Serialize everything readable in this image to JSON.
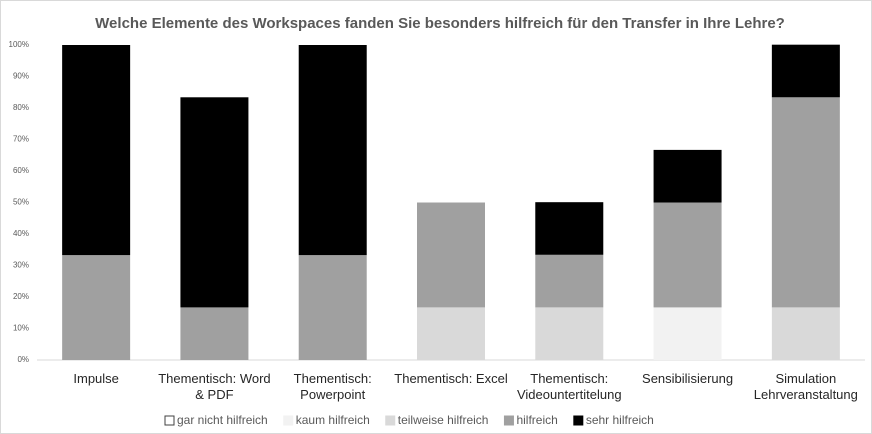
{
  "chart_data": {
    "type": "stacked_bar",
    "title": "Welche Elemente des Workspaces fanden Sie besonders hilfreich für den Transfer in Ihre Lehre?",
    "categories": [
      "Impulse",
      "Thementisch: Word & PDF",
      "Thementisch: Powerpoint",
      "Thementisch: Excel",
      "Thementisch: Videountertitelung",
      "Sensibilisierung",
      "Simulation Lehrveranstaltung"
    ],
    "series": [
      {
        "name": "gar nicht hilfreich",
        "color": "#ffffff",
        "values": [
          0,
          0,
          0,
          0,
          0,
          0,
          0
        ]
      },
      {
        "name": "kaum hilfreich",
        "color": "#f2f2f2",
        "values": [
          0,
          0,
          0,
          0,
          0,
          16.7,
          0
        ]
      },
      {
        "name": "teilweise hilfreich",
        "color": "#d9d9d9",
        "values": [
          0,
          0,
          0,
          16.7,
          16.7,
          0,
          16.7
        ]
      },
      {
        "name": "hilfreich",
        "color": "#a0a0a0",
        "values": [
          33.3,
          16.7,
          33.3,
          33.3,
          16.7,
          33.3,
          66.7
        ]
      },
      {
        "name": "sehr hilfreich",
        "color": "#000000",
        "values": [
          66.7,
          66.7,
          66.7,
          0,
          16.7,
          16.7,
          16.7
        ]
      }
    ],
    "ylim": [
      0,
      100
    ],
    "yticks": [
      {
        "value": 0,
        "label": "0%"
      },
      {
        "value": 10,
        "label": "10%"
      },
      {
        "value": 20,
        "label": "20%"
      },
      {
        "value": 30,
        "label": "30%"
      },
      {
        "value": 40,
        "label": "40%"
      },
      {
        "value": 50,
        "label": "50%"
      },
      {
        "value": 60,
        "label": "60%"
      },
      {
        "value": 70,
        "label": "70%"
      },
      {
        "value": 80,
        "label": "80%"
      },
      {
        "value": 90,
        "label": "90%"
      },
      {
        "value": 100,
        "label": "100%"
      }
    ],
    "legend": "bottom"
  }
}
